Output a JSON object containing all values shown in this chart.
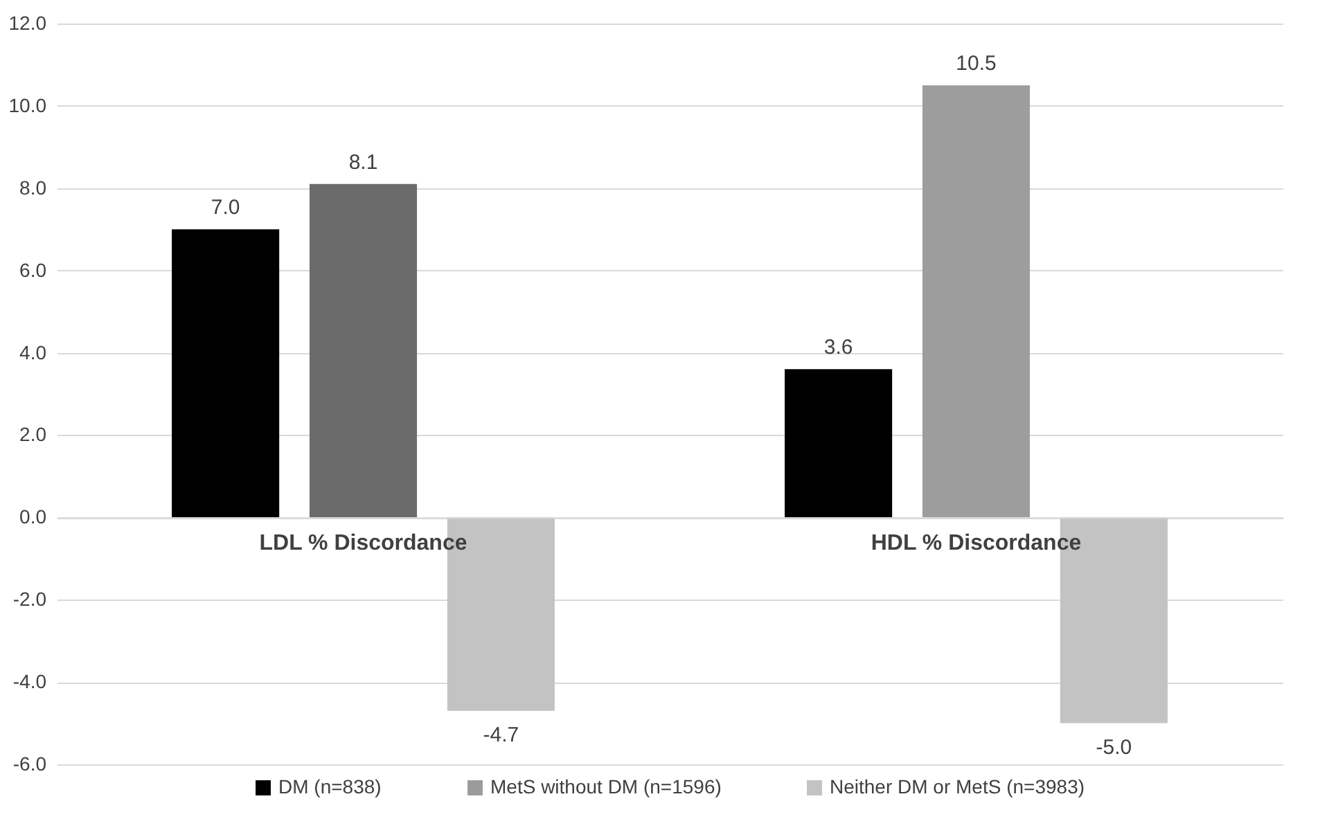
{
  "chart_data": {
    "type": "bar",
    "categories": [
      "LDL % Discordance",
      "HDL % Discordance"
    ],
    "series": [
      {
        "name": "DM (n=838)",
        "color": "#000000",
        "values": [
          7.0,
          3.6
        ],
        "value_labels": [
          "7.0",
          "3.6"
        ]
      },
      {
        "name": "MetS without DM (n=1596)",
        "color": "#9b9b9b",
        "colors": [
          "#6b6b6b",
          "#9d9d9d"
        ],
        "values": [
          8.1,
          10.5
        ],
        "value_labels": [
          "8.1",
          "10.5"
        ]
      },
      {
        "name": "Neither DM or MetS (n=3983)",
        "color": "#c3c3c3",
        "values": [
          -4.7,
          -5.0
        ],
        "value_labels": [
          "-4.7",
          "-5.0"
        ]
      }
    ],
    "ylim": [
      -6,
      12
    ],
    "yticks": [
      {
        "value": -6,
        "label": "-6.0"
      },
      {
        "value": -4,
        "label": "-4.0"
      },
      {
        "value": -2,
        "label": "-2.0"
      },
      {
        "value": 0,
        "label": "0.0"
      },
      {
        "value": 2,
        "label": "2.0"
      },
      {
        "value": 4,
        "label": "4.0"
      },
      {
        "value": 6,
        "label": "6.0"
      },
      {
        "value": 8,
        "label": "8.0"
      },
      {
        "value": 10,
        "label": "10.0"
      },
      {
        "value": 12,
        "label": "12.0"
      }
    ],
    "grid": "y",
    "legend": "bottom"
  }
}
